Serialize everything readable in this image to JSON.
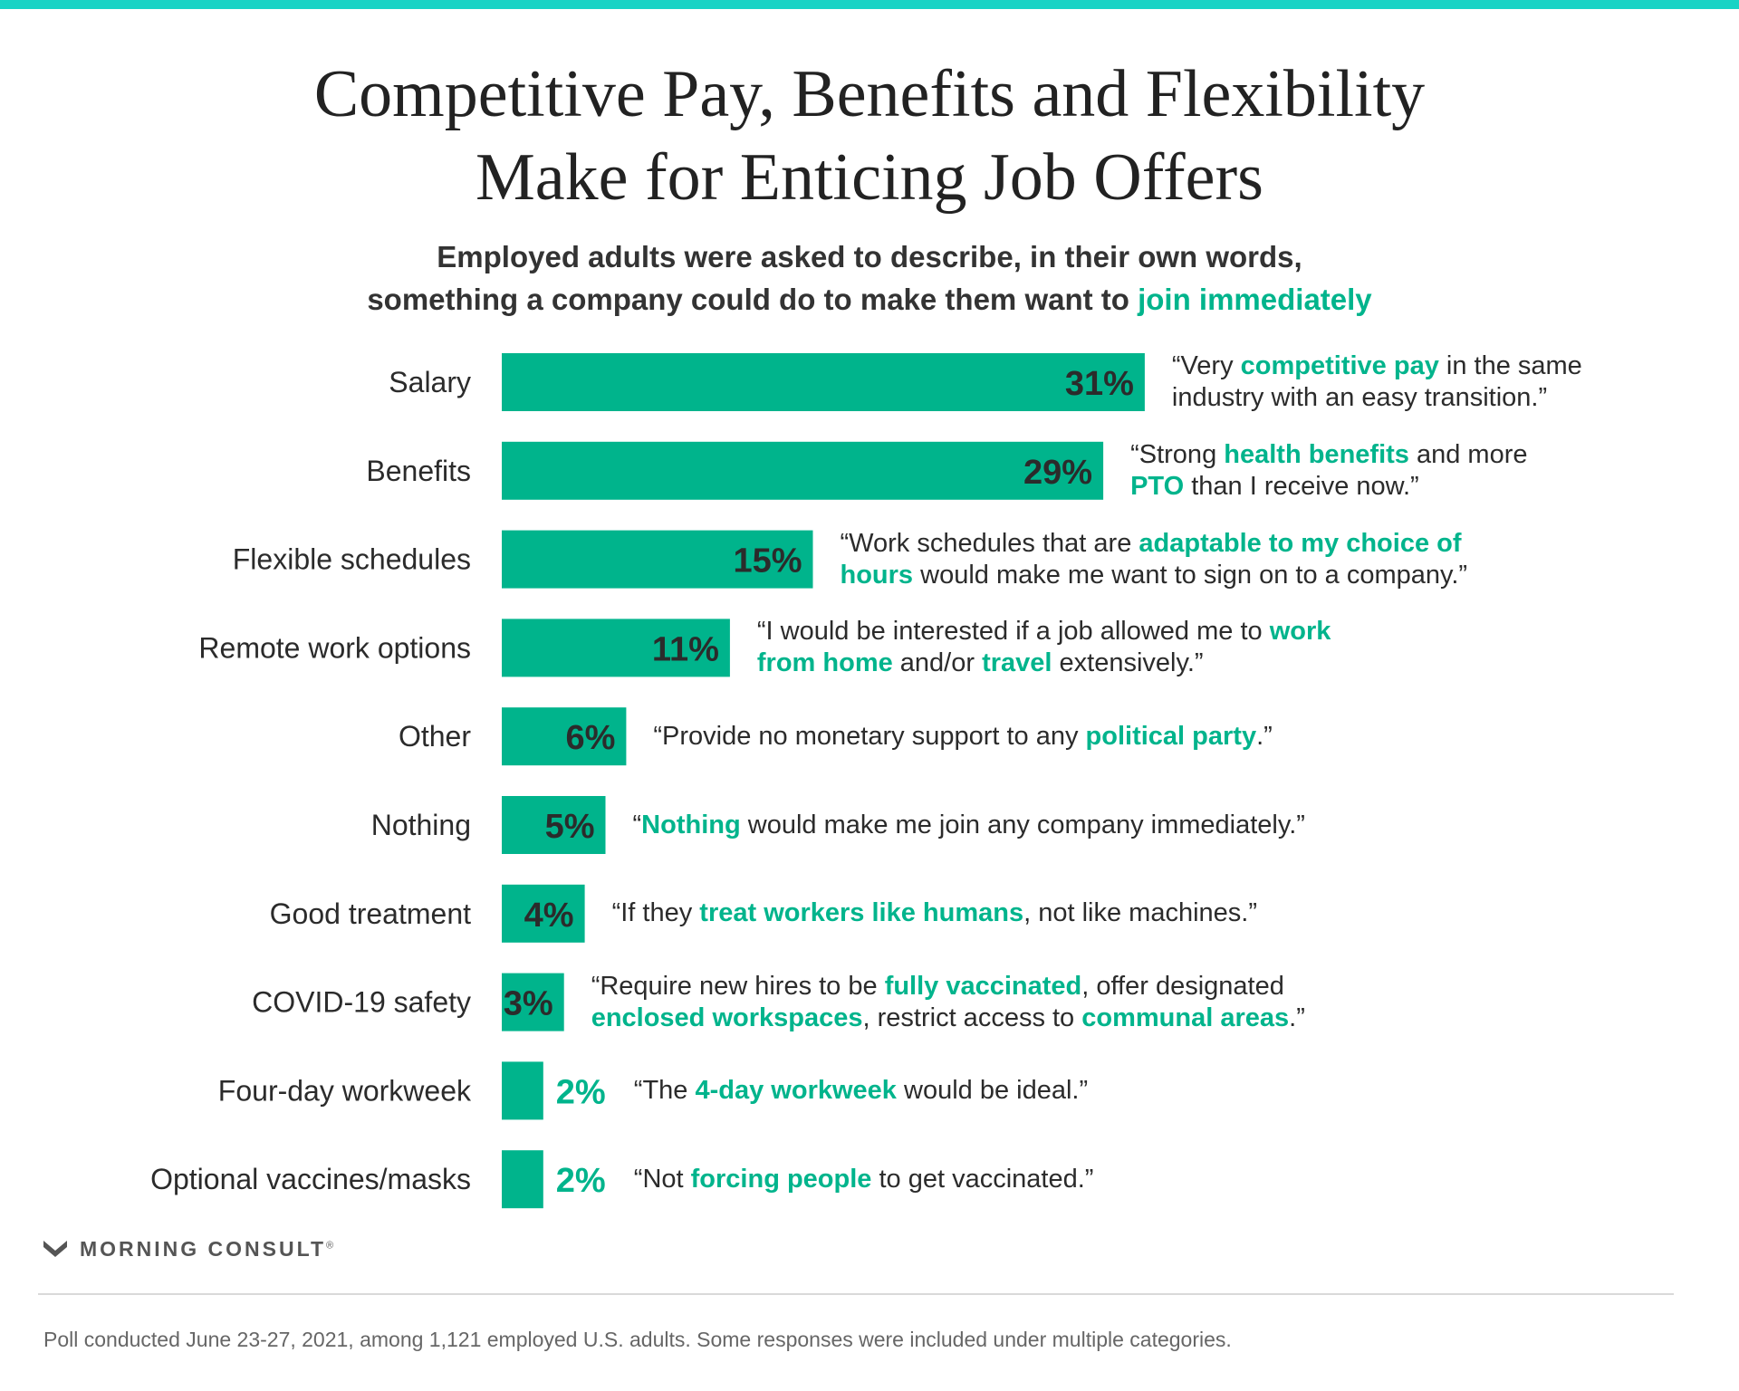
{
  "colors": {
    "accent": "#00b48c",
    "top_bar": "#19d3c5",
    "text": "#2b2b2b"
  },
  "title_lines": [
    "Competitive Pay, Benefits and Flexibility",
    "Make for Enticing  Job Offers"
  ],
  "subtitle": {
    "line1": "Employed adults were asked to describe, in their own words,",
    "line2_prefix": "something a company could do to make them want to ",
    "line2_highlight": "join immediately"
  },
  "chart_data": {
    "type": "bar",
    "orientation": "horizontal",
    "categories": [
      "Salary",
      "Benefits",
      "Flexible schedules",
      "Remote work options",
      "Other",
      "Nothing",
      "Good treatment",
      "COVID-19 safety",
      "Four-day workweek",
      "Optional vaccines/masks"
    ],
    "values": [
      31,
      29,
      15,
      11,
      6,
      5,
      4,
      3,
      2,
      2
    ],
    "value_labels": [
      "31%",
      "29%",
      "15%",
      "11%",
      "6%",
      "5%",
      "4%",
      "3%",
      "2%",
      "2%"
    ],
    "xlim": [
      0,
      31
    ],
    "grid": false,
    "legend": "none"
  },
  "quotes": [
    [
      [
        "“Very ",
        0
      ],
      [
        "competitive pay",
        1
      ],
      [
        " in the same",
        0
      ],
      [
        "\n",
        0
      ],
      [
        "industry with an easy transition.”",
        0
      ]
    ],
    [
      [
        "“Strong ",
        0
      ],
      [
        "health benefits",
        1
      ],
      [
        " and more",
        0
      ],
      [
        "\n",
        0
      ],
      [
        "PTO",
        1
      ],
      [
        " than I receive now.”",
        0
      ]
    ],
    [
      [
        "“Work schedules that are ",
        0
      ],
      [
        "adaptable to my choice of",
        1
      ],
      [
        "\n",
        0
      ],
      [
        "hours",
        1
      ],
      [
        " would make me want to sign on to a company.”",
        0
      ]
    ],
    [
      [
        "“I would be interested if a job allowed me to ",
        0
      ],
      [
        "work",
        1
      ],
      [
        "\n",
        0
      ],
      [
        "from home",
        1
      ],
      [
        " and/or ",
        0
      ],
      [
        "travel",
        1
      ],
      [
        " extensively.”",
        0
      ]
    ],
    [
      [
        "“Provide no monetary support to any ",
        0
      ],
      [
        "political party",
        1
      ],
      [
        ".”",
        0
      ]
    ],
    [
      [
        "“",
        0
      ],
      [
        "Nothing",
        1
      ],
      [
        " would make me join any company immediately.”",
        0
      ]
    ],
    [
      [
        "“If they ",
        0
      ],
      [
        "treat workers like humans",
        1
      ],
      [
        ", not like machines.”",
        0
      ]
    ],
    [
      [
        "“Require new hires to be ",
        0
      ],
      [
        "fully vaccinated",
        1
      ],
      [
        ", offer designated",
        0
      ],
      [
        "\n",
        0
      ],
      [
        "enclosed workspaces",
        1
      ],
      [
        ", restrict access to ",
        0
      ],
      [
        "communal areas",
        1
      ],
      [
        ".”",
        0
      ]
    ],
    [
      [
        "“The ",
        0
      ],
      [
        "4-day workweek",
        1
      ],
      [
        " would be ideal.”",
        0
      ]
    ],
    [
      [
        "“Not ",
        0
      ],
      [
        "forcing people",
        1
      ],
      [
        " to get vaccinated.”",
        0
      ]
    ]
  ],
  "logo": {
    "text": "MORNING CONSULT",
    "mark": "®",
    "icon": "morning-consult-m-logo-icon"
  },
  "footnote": "Poll conducted June 23-27, 2021, among 1,121 employed U.S. adults. Some responses were included under multiple categories."
}
